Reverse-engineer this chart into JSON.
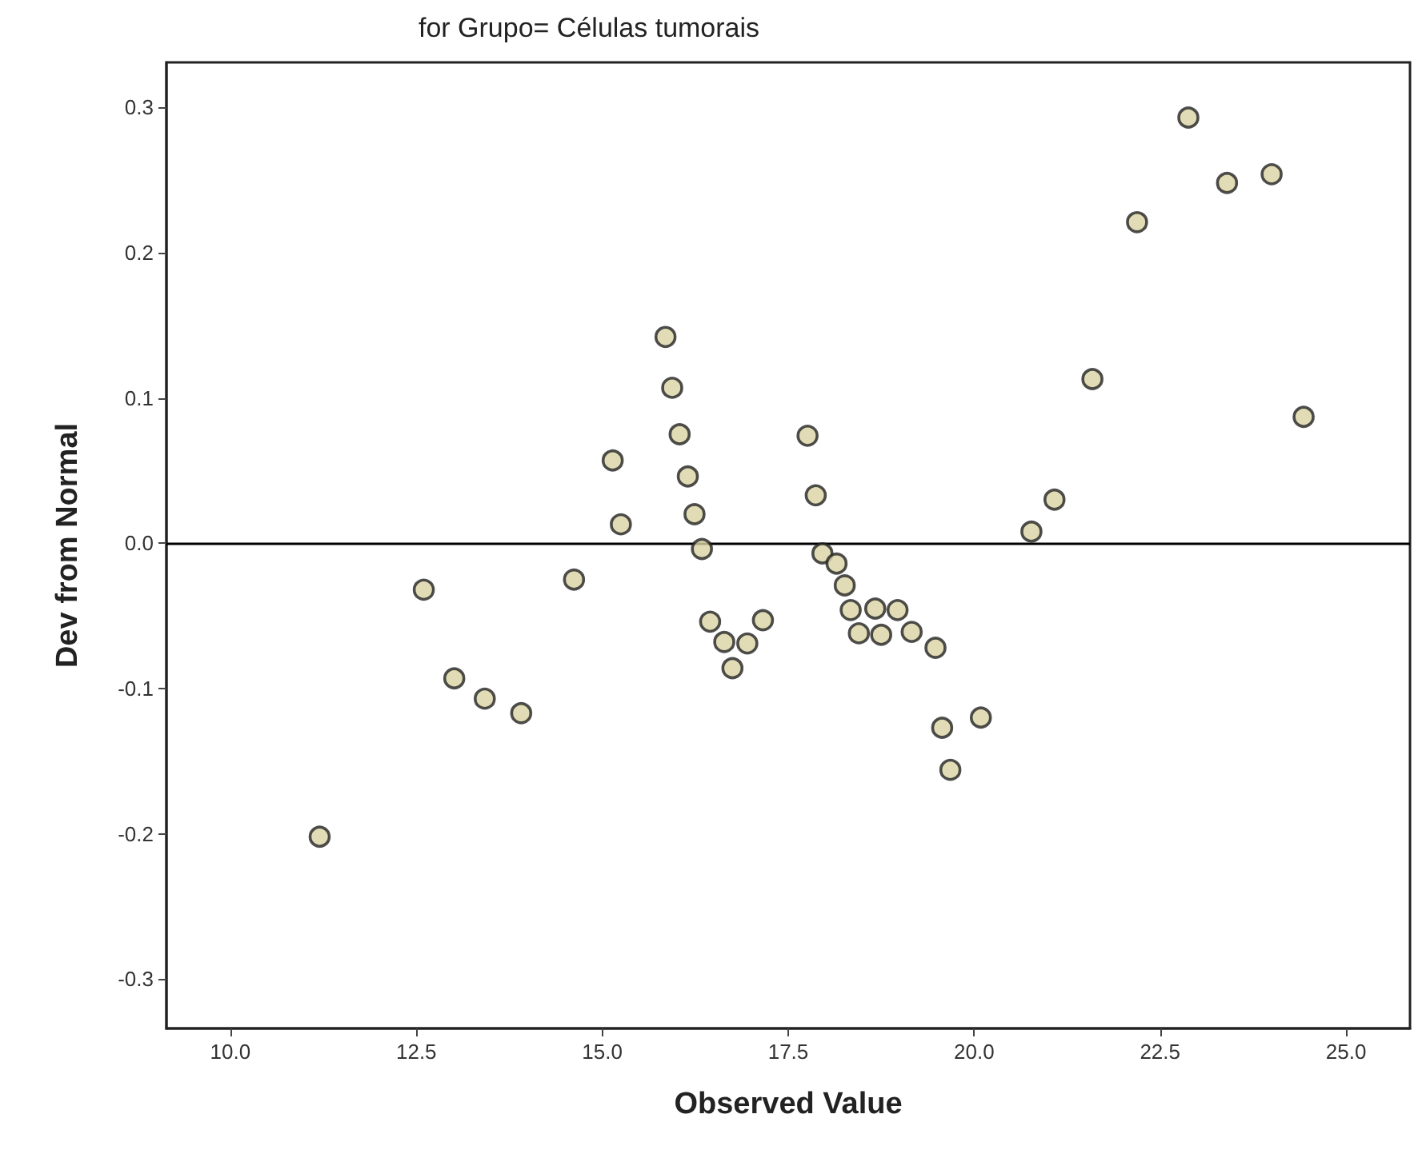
{
  "chart_data": {
    "type": "scatter",
    "title": "for Grupo= Células tumorais",
    "xlabel": "Observed Value",
    "ylabel": "Dev from Normal",
    "x": [
      11.2,
      12.6,
      13.01,
      13.42,
      13.91,
      14.62,
      15.14,
      15.25,
      15.85,
      15.94,
      16.04,
      16.15,
      16.24,
      16.34,
      16.45,
      16.64,
      16.75,
      16.95,
      17.16,
      17.76,
      17.87,
      17.96,
      18.15,
      18.26,
      18.34,
      18.45,
      18.67,
      18.75,
      18.97,
      19.16,
      19.48,
      19.57,
      19.68,
      20.09,
      20.77,
      21.08,
      21.59,
      22.19,
      22.88,
      23.4,
      24.0,
      24.43
    ],
    "series": [
      {
        "color": "#d9d3a3",
        "values": [
          -0.202,
          -0.032,
          -0.093,
          -0.107,
          -0.117,
          -0.025,
          0.057,
          0.013,
          0.142,
          0.107,
          0.075,
          0.046,
          0.02,
          -0.004,
          -0.054,
          -0.068,
          -0.086,
          -0.069,
          -0.053,
          0.074,
          0.033,
          -0.007,
          -0.014,
          -0.029,
          -0.046,
          -0.062,
          -0.045,
          -0.063,
          -0.046,
          -0.061,
          -0.072,
          -0.127,
          -0.156,
          -0.12,
          0.008,
          0.03,
          0.113,
          0.221,
          0.293,
          0.248,
          0.254,
          0.087
        ]
      }
    ],
    "xlim": [
      9.14,
      25.86
    ],
    "ylim": [
      -0.334,
      0.331
    ],
    "xticks": [
      {
        "value": 10,
        "label": "10.0"
      },
      {
        "value": 12.5,
        "label": "12.5"
      },
      {
        "value": 15,
        "label": "15.0"
      },
      {
        "value": 17.5,
        "label": "17.5"
      },
      {
        "value": 20,
        "label": "20.0"
      },
      {
        "value": 22.5,
        "label": "22.5"
      },
      {
        "value": 25,
        "label": "25.0"
      }
    ],
    "yticks": [
      -0.3,
      -0.2,
      -0.1,
      {
        "value": 0,
        "label": "0.0"
      },
      0.1,
      0.2,
      0.3
    ],
    "ref_lines": [
      {
        "axis": "y",
        "value": 0,
        "label": null,
        "color": "#000000"
      }
    ],
    "marker": "circle"
  }
}
